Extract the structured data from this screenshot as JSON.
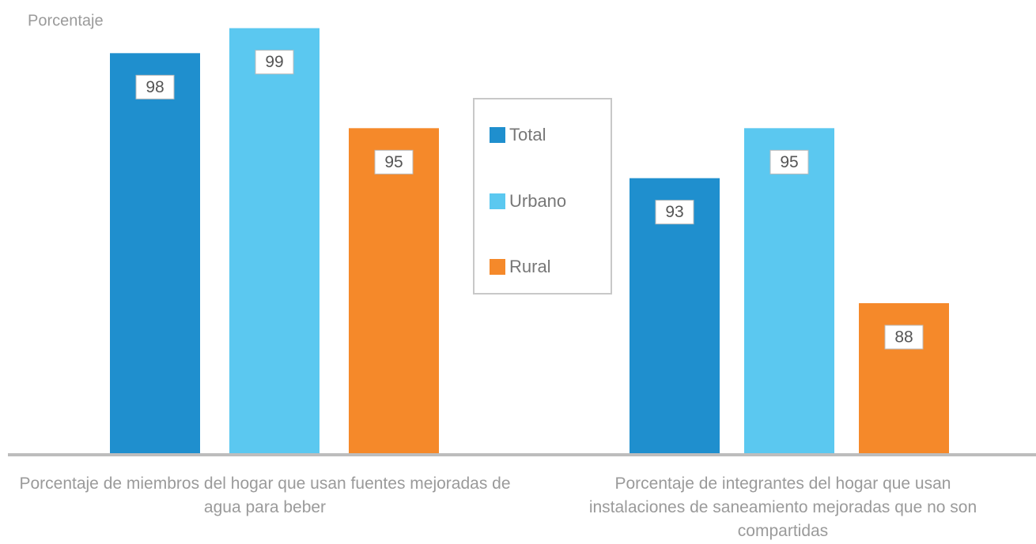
{
  "chart_data": {
    "type": "bar",
    "y_axis_label": "Porcentaje",
    "categories": [
      "Porcentaje de miembros del hogar que usan fuentes mejoradas de agua para beber",
      "Porcentaje de integrantes del hogar que usan instalaciones de saneamiento mejoradas que no son compartidas"
    ],
    "series": [
      {
        "name": "Total",
        "color": "#1f8fce",
        "values": [
          98,
          93
        ]
      },
      {
        "name": "Urbano",
        "color": "#5bc8f0",
        "values": [
          99,
          95
        ]
      },
      {
        "name": "Rural",
        "color": "#f5892a",
        "values": [
          95,
          88
        ]
      }
    ],
    "ylim": [
      82,
      100
    ],
    "legend": "center"
  }
}
